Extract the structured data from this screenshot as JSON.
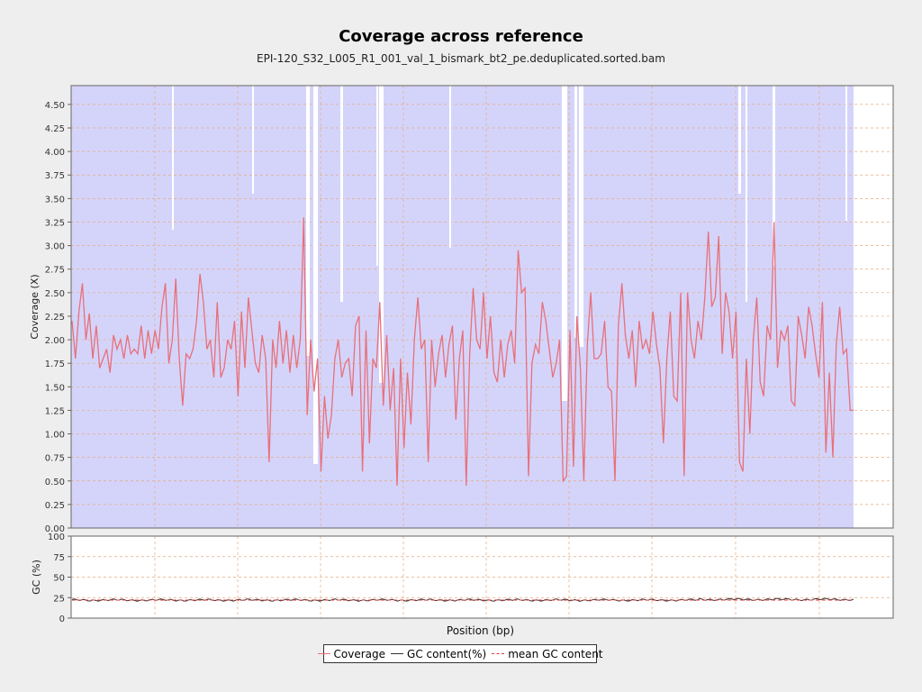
{
  "chart_data": [
    {
      "type": "area+line",
      "title": "Coverage across reference",
      "subtitle": "EPI-120_S32_L005_R1_001_val_1_bismark_bt2_pe.deduplicated.sorted.bam",
      "xlabel": "",
      "ylabel": "Coverage (X)",
      "ylim": [
        0,
        4.7
      ],
      "yticks": [
        "0.00",
        "0.25",
        "0.50",
        "0.75",
        "1.00",
        "1.25",
        "1.50",
        "1.75",
        "2.00",
        "2.25",
        "2.50",
        "2.75",
        "3.00",
        "3.25",
        "3.50",
        "3.75",
        "4.00",
        "4.25",
        "4.50"
      ],
      "grid": true,
      "series": [
        {
          "name": "Coverage",
          "color": "#e8707a",
          "values": [
            2.2,
            1.8,
            2.3,
            2.6,
            2.0,
            2.28,
            1.8,
            2.15,
            1.7,
            1.8,
            1.9,
            1.65,
            2.05,
            1.9,
            2.0,
            1.8,
            2.05,
            1.85,
            1.9,
            1.85,
            2.15,
            1.8,
            2.1,
            1.85,
            2.1,
            1.9,
            2.35,
            2.6,
            1.75,
            2.0,
            2.65,
            1.8,
            1.3,
            1.85,
            1.8,
            1.9,
            2.2,
            2.7,
            2.4,
            1.9,
            2.0,
            1.6,
            2.4,
            1.6,
            1.7,
            2.0,
            1.9,
            2.2,
            1.4,
            2.3,
            1.7,
            2.45,
            2.1,
            1.75,
            1.65,
            2.05,
            1.8,
            0.7,
            2.0,
            1.7,
            2.2,
            1.75,
            2.1,
            1.65,
            2.05,
            1.7,
            2.0,
            3.3,
            1.2,
            2.0,
            1.45,
            1.8,
            0.6,
            1.4,
            0.95,
            1.2,
            1.8,
            2.0,
            1.6,
            1.75,
            1.8,
            1.4,
            2.15,
            2.25,
            0.6,
            2.1,
            0.9,
            1.8,
            1.7,
            2.4,
            1.3,
            2.05,
            1.25,
            1.7,
            0.45,
            1.8,
            0.85,
            1.65,
            1.1,
            2.0,
            2.45,
            1.9,
            2.0,
            0.7,
            2.0,
            1.5,
            1.85,
            2.05,
            1.6,
            1.95,
            2.15,
            1.15,
            1.8,
            2.1,
            0.45,
            1.85,
            2.55,
            2.0,
            1.9,
            2.5,
            1.8,
            2.25,
            1.65,
            1.55,
            2.0,
            1.6,
            1.95,
            2.1,
            1.75,
            2.95,
            2.5,
            2.55,
            0.55,
            1.75,
            1.95,
            1.85,
            2.4,
            2.2,
            1.9,
            1.6,
            1.75,
            2.0,
            0.5,
            0.55,
            2.1,
            0.65,
            2.25,
            1.7,
            0.5,
            1.95,
            2.5,
            1.8,
            1.8,
            1.85,
            2.2,
            1.5,
            1.45,
            0.5,
            2.15,
            2.6,
            2.05,
            1.8,
            2.1,
            1.5,
            2.2,
            1.9,
            2.0,
            1.85,
            2.3,
            1.95,
            1.7,
            0.9,
            1.8,
            2.3,
            1.4,
            1.35,
            2.5,
            0.55,
            2.5,
            2.0,
            1.8,
            2.2,
            2.0,
            2.45,
            3.15,
            2.35,
            2.45,
            3.1,
            1.85,
            2.5,
            2.3,
            1.8,
            2.3,
            0.7,
            0.6,
            1.8,
            1.0,
            2.0,
            2.45,
            1.55,
            1.4,
            2.15,
            2.0,
            3.25,
            1.7,
            2.1,
            2.0,
            2.15,
            1.35,
            1.3,
            2.25,
            2.05,
            1.8,
            2.35,
            2.15,
            1.85,
            1.6,
            2.4,
            0.8,
            1.65,
            0.75,
            1.95,
            2.35,
            1.85,
            1.9,
            1.25,
            1.25
          ]
        }
      ]
    },
    {
      "type": "line",
      "ylabel": "GC (%)",
      "xlabel": "Position (bp)",
      "ylim": [
        0,
        100
      ],
      "yticks": [
        "0",
        "25",
        "50",
        "75",
        "100"
      ],
      "grid": true,
      "series": [
        {
          "name": "GC content(%)",
          "color": "#333333",
          "values_note_mean": 22
        },
        {
          "name": "mean GC content",
          "color": "#e83b3b",
          "dashed": true,
          "value": 22
        }
      ]
    }
  ],
  "legend": {
    "items": [
      {
        "label": "Coverage",
        "color": "#e8707a"
      },
      {
        "label": "GC content(%)",
        "color": "#333333"
      },
      {
        "label": "mean GC content",
        "color": "#e83b3b"
      }
    ]
  }
}
